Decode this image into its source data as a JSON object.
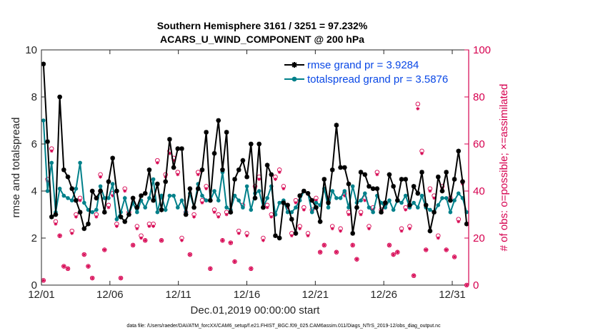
{
  "chart_data": {
    "type": "line",
    "title_line1": "Southern Hemisphere 3161 / 3251 = 97.232%",
    "title_line2": "ACARS_U_WIND_COMPONENT @ 200 hPa",
    "xlabel": "Dec.01,2019 00:00:00 start",
    "ylabel_left": "rmse and totalspread",
    "ylabel_right": "# of obs: o=possible; ×=assimilated",
    "footer": "data file: /Users/raeder/DAI/ATM_forcXX/CAM6_setup/f.e21.FHIST_BGC.f09_025.CAM6assim.011/Diags_NTrS_2019-12/obs_diag_output.nc",
    "xlim": [
      0,
      31.2
    ],
    "ylim_left": [
      0,
      10
    ],
    "ylim_right": [
      0,
      100
    ],
    "x_ticks": [
      0,
      5,
      10,
      15,
      20,
      25,
      30
    ],
    "x_tick_labels": [
      "12/01",
      "12/06",
      "12/11",
      "12/16",
      "12/21",
      "12/26",
      "12/31"
    ],
    "y_left_ticks": [
      0,
      2,
      4,
      6,
      8,
      10
    ],
    "y_left_tick_labels": [
      "0",
      "2",
      "4",
      "6",
      "8",
      "10"
    ],
    "y_right_ticks": [
      0,
      20,
      40,
      60,
      80,
      100
    ],
    "y_right_tick_labels": [
      "0",
      "20",
      "40",
      "60",
      "80",
      "100"
    ],
    "colors": {
      "rmse": "#000000",
      "spread": "#00808a",
      "obs": "#d6004f",
      "legend_text": "#0a48e6",
      "right_axis": "#d6004f"
    },
    "series": [
      {
        "name": "rmse grand pr = 3.9284",
        "values": [
          9.4,
          6.1,
          2.9,
          3.0,
          8.0,
          4.9,
          4.6,
          4.1,
          3.6,
          3.1,
          2.4,
          2.6,
          4.0,
          3.7,
          4.0,
          3.1,
          4.4,
          5.4,
          4.0,
          2.9,
          2.7,
          3.0,
          3.7,
          3.3,
          3.8,
          3.9,
          4.9,
          3.6,
          4.3,
          3.2,
          4.4,
          6.2,
          5.0,
          5.8,
          5.8,
          3.0,
          4.1,
          3.3,
          4.1,
          4.9,
          6.5,
          3.6,
          5.6,
          7.0,
          4.9,
          6.5,
          3.1,
          4.5,
          4.9,
          5.3,
          4.6,
          6.0,
          3.7,
          6.0,
          3.3,
          5.1,
          4.7,
          2.1,
          2.0,
          3.5,
          3.4,
          2.8,
          2.2,
          3.8,
          4.0,
          3.9,
          3.6,
          3.3,
          2.7,
          4.5,
          3.5,
          4.9,
          6.8,
          5.0,
          5.0,
          4.3,
          2.2,
          3.3,
          4.8,
          4.7,
          4.2,
          4.1,
          4.1,
          3.1,
          3.5,
          4.7,
          4.2,
          3.6,
          4.5,
          4.5,
          3.4,
          4.2,
          3.9,
          4.8,
          3.4,
          2.3,
          3.1,
          4.6,
          4.0,
          4.8,
          3.6,
          4.5,
          5.7,
          4.4,
          2.6
        ]
      },
      {
        "name": "totalspread grand pr = 3.5876",
        "values": [
          7.0,
          4.0,
          5.2,
          3.1,
          4.1,
          3.8,
          3.7,
          3.6,
          4.1,
          5.2,
          3.5,
          3.2,
          3.1,
          3.2,
          4.2,
          3.7,
          3.7,
          4.3,
          2.8,
          3.1,
          3.7,
          3.0,
          3.5,
          3.1,
          3.6,
          3.3,
          3.7,
          4.5,
          3.1,
          3.8,
          3.2,
          3.8,
          3.8,
          3.3,
          3.6,
          3.1,
          3.9,
          3.3,
          4.3,
          3.8,
          3.6,
          3.6,
          4.0,
          3.6,
          4.8,
          3.3,
          3.2,
          3.8,
          3.6,
          3.3,
          4.2,
          3.2,
          3.9,
          4.0,
          3.3,
          3.7,
          4.2,
          3.0,
          3.5,
          3.6,
          3.1,
          3.1,
          3.3,
          3.6,
          4.0,
          3.9,
          3.1,
          3.5,
          3.4,
          4.1,
          3.3,
          4.0,
          3.7,
          3.7,
          4.0,
          3.3,
          4.2,
          3.5,
          3.6,
          3.9,
          3.3,
          3.1,
          3.8,
          3.5,
          3.3,
          3.6,
          3.2,
          3.6,
          3.5,
          3.8,
          3.3,
          3.5,
          3.3,
          3.8,
          3.3,
          3.2,
          3.1,
          3.4,
          3.7,
          3.7,
          3.1,
          3.6,
          3.9,
          3.7,
          3.1
        ]
      }
    ],
    "obs_possible": [
      2,
      45,
      58,
      27,
      21,
      8,
      7,
      23,
      30,
      37,
      13,
      8,
      3,
      30,
      47,
      15,
      34,
      39,
      26,
      3,
      41,
      31,
      17,
      25,
      21,
      19,
      26,
      26,
      53,
      19,
      47,
      57,
      54,
      48,
      20,
      31,
      13,
      30,
      48,
      36,
      42,
      7,
      32,
      30,
      19,
      31,
      18,
      10,
      23,
      34,
      22,
      7,
      42,
      46,
      20,
      34,
      30,
      46,
      49,
      42,
      34,
      22,
      36,
      25,
      33,
      22,
      32,
      37,
      14,
      17,
      37,
      25,
      14,
      24,
      39,
      31,
      17,
      11,
      31,
      37,
      25,
      33,
      48,
      32,
      35,
      17,
      13,
      14,
      24,
      33,
      25,
      4,
      77,
      57,
      15,
      41,
      38,
      21,
      42,
      15,
      37,
      12,
      28,
      44,
      0
    ],
    "obs_assimilated": [
      2,
      44,
      57,
      26,
      21,
      8,
      7,
      22,
      29,
      36,
      13,
      8,
      3,
      29,
      46,
      15,
      33,
      38,
      25,
      3,
      40,
      30,
      17,
      24,
      20,
      19,
      25,
      25,
      52,
      19,
      46,
      56,
      53,
      47,
      19,
      30,
      13,
      29,
      47,
      35,
      41,
      7,
      31,
      29,
      19,
      30,
      18,
      10,
      22,
      33,
      21,
      7,
      41,
      45,
      19,
      33,
      29,
      45,
      48,
      41,
      33,
      21,
      35,
      24,
      32,
      21,
      31,
      36,
      14,
      17,
      36,
      24,
      14,
      23,
      38,
      30,
      17,
      11,
      30,
      36,
      24,
      32,
      47,
      31,
      34,
      17,
      13,
      14,
      23,
      32,
      24,
      4,
      75,
      56,
      15,
      40,
      37,
      20,
      41,
      15,
      36,
      12,
      27,
      43,
      0
    ]
  }
}
